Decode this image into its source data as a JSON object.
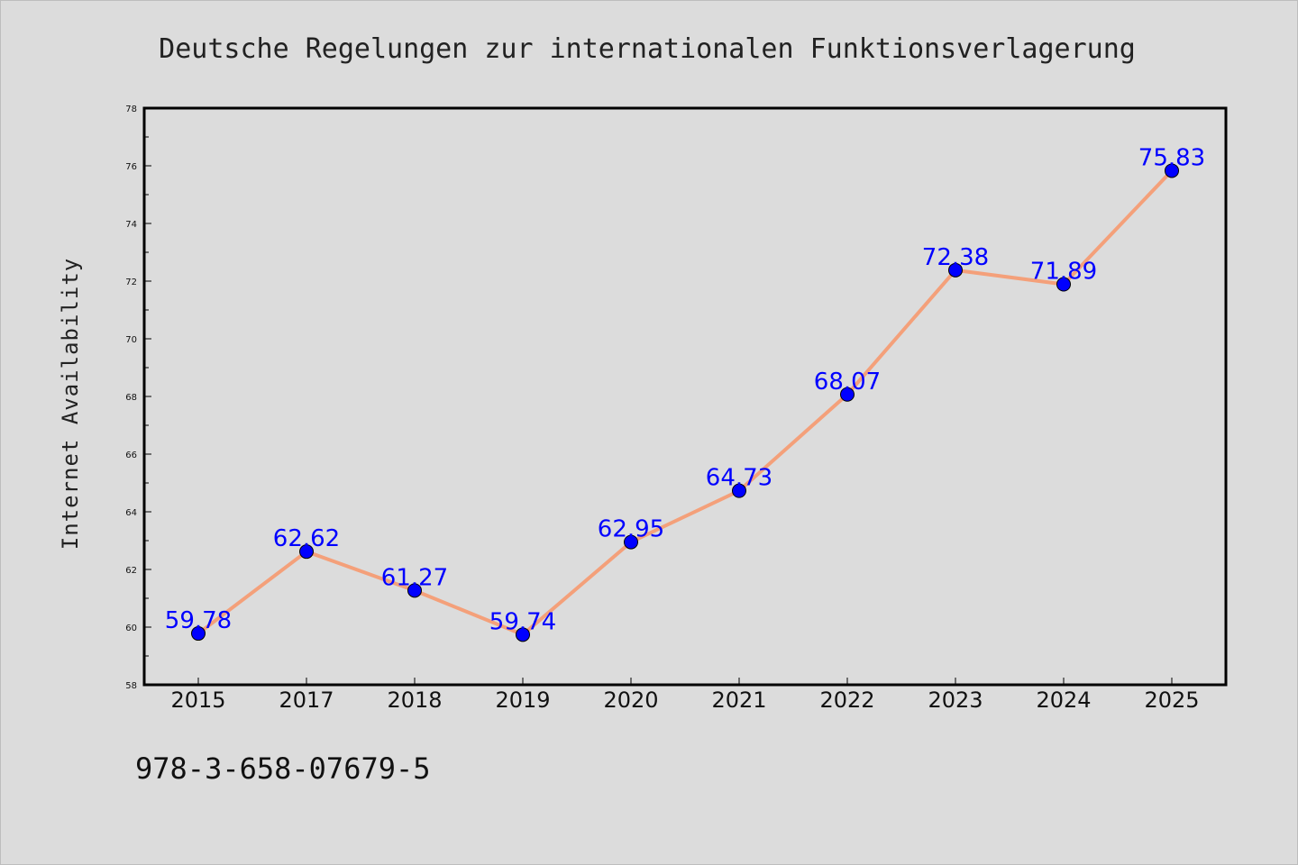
{
  "chart_data": {
    "type": "line",
    "title": "Deutsche Regelungen zur internationalen Funktionsverlagerung",
    "xlabel": "",
    "ylabel": "Internet Availability",
    "categories": [
      "2015",
      "2017",
      "2018",
      "2019",
      "2020",
      "2021",
      "2022",
      "2023",
      "2024",
      "2025"
    ],
    "series": [
      {
        "values": [
          59.78,
          62.62,
          61.27,
          59.74,
          62.95,
          64.73,
          68.07,
          72.38,
          71.89,
          75.83
        ],
        "line_color": "#f4a07a",
        "marker_color": "#0000ff"
      }
    ],
    "data_labels": [
      "59.78",
      "62.62",
      "61.27",
      "59.74",
      "62.95",
      "64.73",
      "68.07",
      "72.38",
      "71.89",
      "75.83"
    ],
    "ylim": [
      58,
      78
    ],
    "yticks": [
      58,
      60,
      62,
      64,
      66,
      68,
      70,
      72,
      74,
      76,
      78
    ],
    "ytick_labels": [
      "58",
      "60",
      "62",
      "64",
      "66",
      "68",
      "70",
      "72",
      "74",
      "76",
      "78"
    ],
    "grid": false,
    "footer_text": "978-3-658-07679-5"
  }
}
